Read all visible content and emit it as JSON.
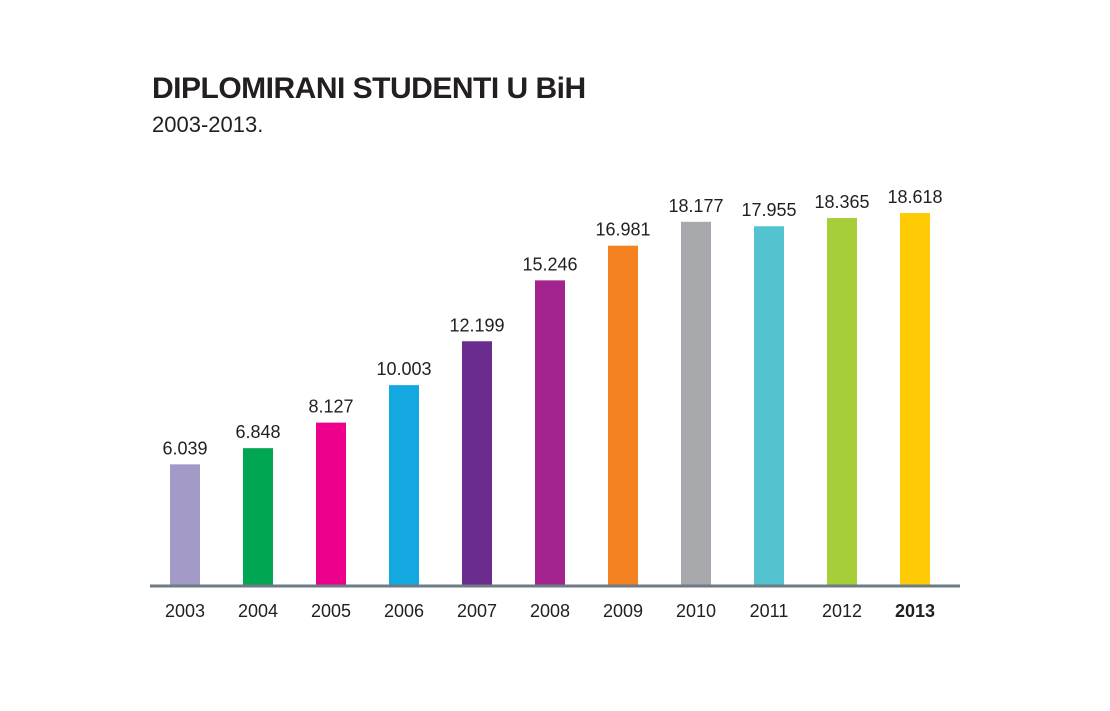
{
  "chart_data": {
    "type": "bar",
    "title": "DIPLOMIRANI STUDENTI U BiH",
    "subtitle": "2003-2013.",
    "categories": [
      "2003",
      "2004",
      "2005",
      "2006",
      "2007",
      "2008",
      "2009",
      "2010",
      "2011",
      "2012",
      "2013"
    ],
    "values": [
      6039,
      6848,
      8127,
      10003,
      12199,
      15246,
      16981,
      18177,
      17955,
      18365,
      18618
    ],
    "data_labels": [
      "6.039",
      "6.848",
      "8.127",
      "10.003",
      "12.199",
      "15.246",
      "16.981",
      "18.177",
      "17.955",
      "18.365",
      "18.618"
    ],
    "colors": [
      "#a39ac8",
      "#00a651",
      "#ec008c",
      "#13a9e0",
      "#6a2c8f",
      "#a3238e",
      "#f58220",
      "#a7a9ac",
      "#52c3cf",
      "#a6ce39",
      "#ffcb05"
    ],
    "highlight_category": "2013",
    "axis_color": "#6d7b84",
    "xlabel": "",
    "ylabel": "",
    "ylim": [
      0,
      18618
    ],
    "grid": false
  }
}
